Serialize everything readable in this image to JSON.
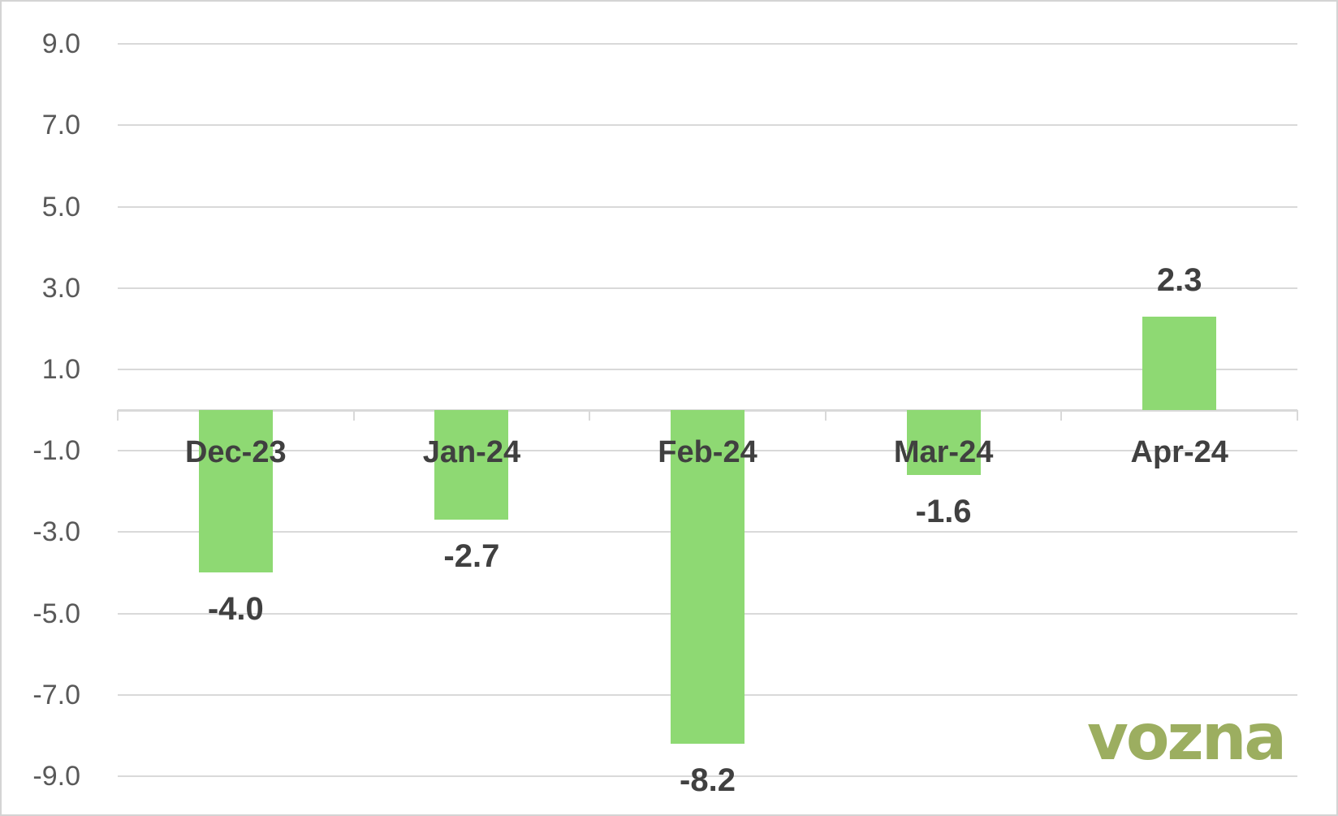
{
  "chart_data": {
    "type": "bar",
    "title": "",
    "xlabel": "",
    "ylabel": "",
    "categories": [
      "Dec-23",
      "Jan-24",
      "Feb-24",
      "Mar-24",
      "Apr-24"
    ],
    "values": [
      -4.0,
      -2.7,
      -8.2,
      -1.6,
      2.3
    ],
    "data_labels": [
      "-4.0",
      "-2.7",
      "-8.2",
      "-1.6",
      "2.3"
    ],
    "ylim": [
      -9.0,
      9.0
    ],
    "yticks": [
      {
        "value": 9.0,
        "label": "9.0"
      },
      {
        "value": 7.0,
        "label": "7.0"
      },
      {
        "value": 5.0,
        "label": "5.0"
      },
      {
        "value": 3.0,
        "label": "3.0"
      },
      {
        "value": 1.0,
        "label": "1.0"
      },
      {
        "value": -1.0,
        "label": "-1.0"
      },
      {
        "value": -3.0,
        "label": "-3.0"
      },
      {
        "value": -5.0,
        "label": "-5.0"
      },
      {
        "value": -7.0,
        "label": "-7.0"
      },
      {
        "value": -9.0,
        "label": "-9.0"
      }
    ],
    "grid": true,
    "legend_position": "none",
    "bar_color": "#8ED973",
    "data_label_color": "#404040",
    "category_label_color": "#404040",
    "tick_label_color": "#595959",
    "gridline_color": "#D9D9D9",
    "axis_color": "#D9D9D9"
  },
  "branding": {
    "logo_text": "vozna",
    "logo_color": "#9CAE60"
  }
}
